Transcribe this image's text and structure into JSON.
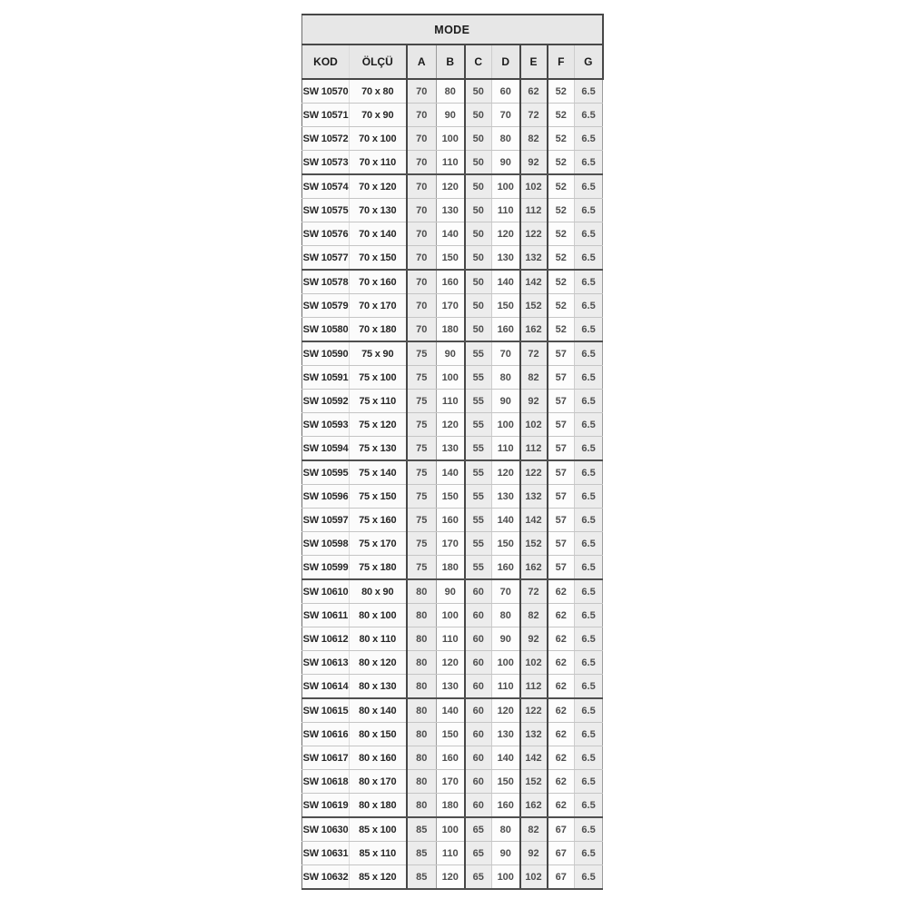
{
  "table": {
    "title": "MODE",
    "columns": [
      "KOD",
      "ÖLÇÜ",
      "A",
      "B",
      "C",
      "D",
      "E",
      "F",
      "G"
    ],
    "rows": [
      [
        "SW 10570",
        "70 x 80",
        "70",
        "80",
        "50",
        "60",
        "62",
        "52",
        "6.5"
      ],
      [
        "SW 10571",
        "70 x 90",
        "70",
        "90",
        "50",
        "70",
        "72",
        "52",
        "6.5"
      ],
      [
        "SW 10572",
        "70 x 100",
        "70",
        "100",
        "50",
        "80",
        "82",
        "52",
        "6.5"
      ],
      [
        "SW 10573",
        "70 x 110",
        "70",
        "110",
        "50",
        "90",
        "92",
        "52",
        "6.5"
      ],
      [
        "SW 10574",
        "70 x 120",
        "70",
        "120",
        "50",
        "100",
        "102",
        "52",
        "6.5"
      ],
      [
        "SW 10575",
        "70 x 130",
        "70",
        "130",
        "50",
        "110",
        "112",
        "52",
        "6.5"
      ],
      [
        "SW 10576",
        "70 x 140",
        "70",
        "140",
        "50",
        "120",
        "122",
        "52",
        "6.5"
      ],
      [
        "SW 10577",
        "70 x 150",
        "70",
        "150",
        "50",
        "130",
        "132",
        "52",
        "6.5"
      ],
      [
        "SW 10578",
        "70 x 160",
        "70",
        "160",
        "50",
        "140",
        "142",
        "52",
        "6.5"
      ],
      [
        "SW 10579",
        "70 x 170",
        "70",
        "170",
        "50",
        "150",
        "152",
        "52",
        "6.5"
      ],
      [
        "SW 10580",
        "70 x 180",
        "70",
        "180",
        "50",
        "160",
        "162",
        "52",
        "6.5"
      ],
      [
        "SW 10590",
        "75 x 90",
        "75",
        "90",
        "55",
        "70",
        "72",
        "57",
        "6.5"
      ],
      [
        "SW 10591",
        "75 x 100",
        "75",
        "100",
        "55",
        "80",
        "82",
        "57",
        "6.5"
      ],
      [
        "SW 10592",
        "75 x 110",
        "75",
        "110",
        "55",
        "90",
        "92",
        "57",
        "6.5"
      ],
      [
        "SW 10593",
        "75 x 120",
        "75",
        "120",
        "55",
        "100",
        "102",
        "57",
        "6.5"
      ],
      [
        "SW 10594",
        "75 x 130",
        "75",
        "130",
        "55",
        "110",
        "112",
        "57",
        "6.5"
      ],
      [
        "SW 10595",
        "75 x 140",
        "75",
        "140",
        "55",
        "120",
        "122",
        "57",
        "6.5"
      ],
      [
        "SW 10596",
        "75 x 150",
        "75",
        "150",
        "55",
        "130",
        "132",
        "57",
        "6.5"
      ],
      [
        "SW 10597",
        "75 x 160",
        "75",
        "160",
        "55",
        "140",
        "142",
        "57",
        "6.5"
      ],
      [
        "SW 10598",
        "75 x 170",
        "75",
        "170",
        "55",
        "150",
        "152",
        "57",
        "6.5"
      ],
      [
        "SW 10599",
        "75 x 180",
        "75",
        "180",
        "55",
        "160",
        "162",
        "57",
        "6.5"
      ],
      [
        "SW 10610",
        "80 x 90",
        "80",
        "90",
        "60",
        "70",
        "72",
        "62",
        "6.5"
      ],
      [
        "SW 10611",
        "80 x 100",
        "80",
        "100",
        "60",
        "80",
        "82",
        "62",
        "6.5"
      ],
      [
        "SW 10612",
        "80 x 110",
        "80",
        "110",
        "60",
        "90",
        "92",
        "62",
        "6.5"
      ],
      [
        "SW 10613",
        "80 x 120",
        "80",
        "120",
        "60",
        "100",
        "102",
        "62",
        "6.5"
      ],
      [
        "SW 10614",
        "80 x 130",
        "80",
        "130",
        "60",
        "110",
        "112",
        "62",
        "6.5"
      ],
      [
        "SW 10615",
        "80 x 140",
        "80",
        "140",
        "60",
        "120",
        "122",
        "62",
        "6.5"
      ],
      [
        "SW 10616",
        "80 x 150",
        "80",
        "150",
        "60",
        "130",
        "132",
        "62",
        "6.5"
      ],
      [
        "SW 10617",
        "80 x 160",
        "80",
        "160",
        "60",
        "140",
        "142",
        "62",
        "6.5"
      ],
      [
        "SW 10618",
        "80 x 170",
        "80",
        "170",
        "60",
        "150",
        "152",
        "62",
        "6.5"
      ],
      [
        "SW 10619",
        "80 x 180",
        "80",
        "180",
        "60",
        "160",
        "162",
        "62",
        "6.5"
      ],
      [
        "SW 10630",
        "85 x 100",
        "85",
        "100",
        "65",
        "80",
        "82",
        "67",
        "6.5"
      ],
      [
        "SW 10631",
        "85 x 110",
        "85",
        "110",
        "65",
        "90",
        "92",
        "67",
        "6.5"
      ],
      [
        "SW 10632",
        "85 x 120",
        "85",
        "120",
        "65",
        "100",
        "102",
        "67",
        "6.5"
      ]
    ]
  }
}
